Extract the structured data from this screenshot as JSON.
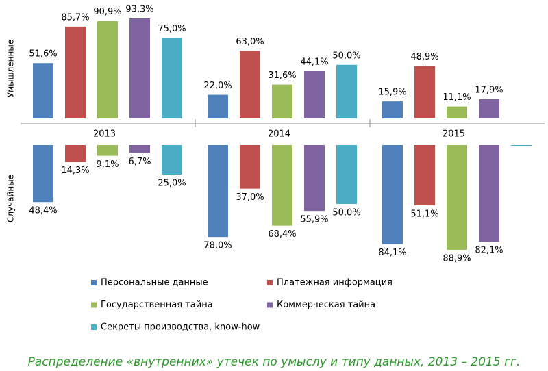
{
  "caption": "Распределение «внутренних» утечек по умыслу и типу данных, 2013 – 2015 гг.",
  "chart_data": [
    {
      "type": "bar",
      "ylabel": "Умышленные",
      "categories": [
        "2013",
        "2014",
        "2015"
      ],
      "ylim": [
        0,
        100
      ],
      "series": [
        {
          "name": "Персональные данные",
          "color": "#4f81bd",
          "values": [
            51.6,
            22.0,
            15.9
          ],
          "value_labels": [
            "51,6%",
            "22,0%",
            "15,9%"
          ]
        },
        {
          "name": "Платежная информация",
          "color": "#c0504d",
          "values": [
            85.7,
            63.0,
            48.9
          ],
          "value_labels": [
            "85,7%",
            "63,0%",
            "48,9%"
          ]
        },
        {
          "name": "Государственная тайна",
          "color": "#9bbb59",
          "values": [
            90.9,
            31.6,
            11.1
          ],
          "value_labels": [
            "90,9%",
            "31,6%",
            "11,1%"
          ]
        },
        {
          "name": "Коммерческая тайна",
          "color": "#8064a2",
          "values": [
            93.3,
            44.1,
            17.9
          ],
          "value_labels": [
            "93,3%",
            "44,1%",
            "17,9%"
          ]
        },
        {
          "name": "Секреты производства, know-how",
          "color": "#4bacc6",
          "values": [
            75.0,
            50.0,
            null
          ],
          "value_labels": [
            "75,0%",
            "50,0%",
            null
          ]
        }
      ]
    },
    {
      "type": "bar",
      "ylabel": "Случайные",
      "ylim": [
        0,
        100
      ],
      "series": [
        {
          "color": "#4f81bd",
          "values": [
            48.4,
            78.0,
            84.1
          ],
          "value_labels": [
            "48,4%",
            "78,0%",
            "84,1%"
          ]
        },
        {
          "color": "#c0504d",
          "values": [
            14.3,
            37.0,
            51.1
          ],
          "value_labels": [
            "14,3%",
            "37,0%",
            "51,1%"
          ]
        },
        {
          "color": "#9bbb59",
          "values": [
            9.1,
            68.4,
            88.9
          ],
          "value_labels": [
            "9,1%",
            "68,4%",
            "88,9%"
          ]
        },
        {
          "color": "#8064a2",
          "values": [
            6.7,
            55.9,
            82.1
          ],
          "value_labels": [
            "6,7%",
            "55,9%",
            "82,1%"
          ]
        },
        {
          "color": "#4bacc6",
          "values": [
            25.0,
            50.0,
            0
          ],
          "value_labels": [
            "25,0%",
            "50,0%",
            null
          ]
        }
      ]
    }
  ]
}
